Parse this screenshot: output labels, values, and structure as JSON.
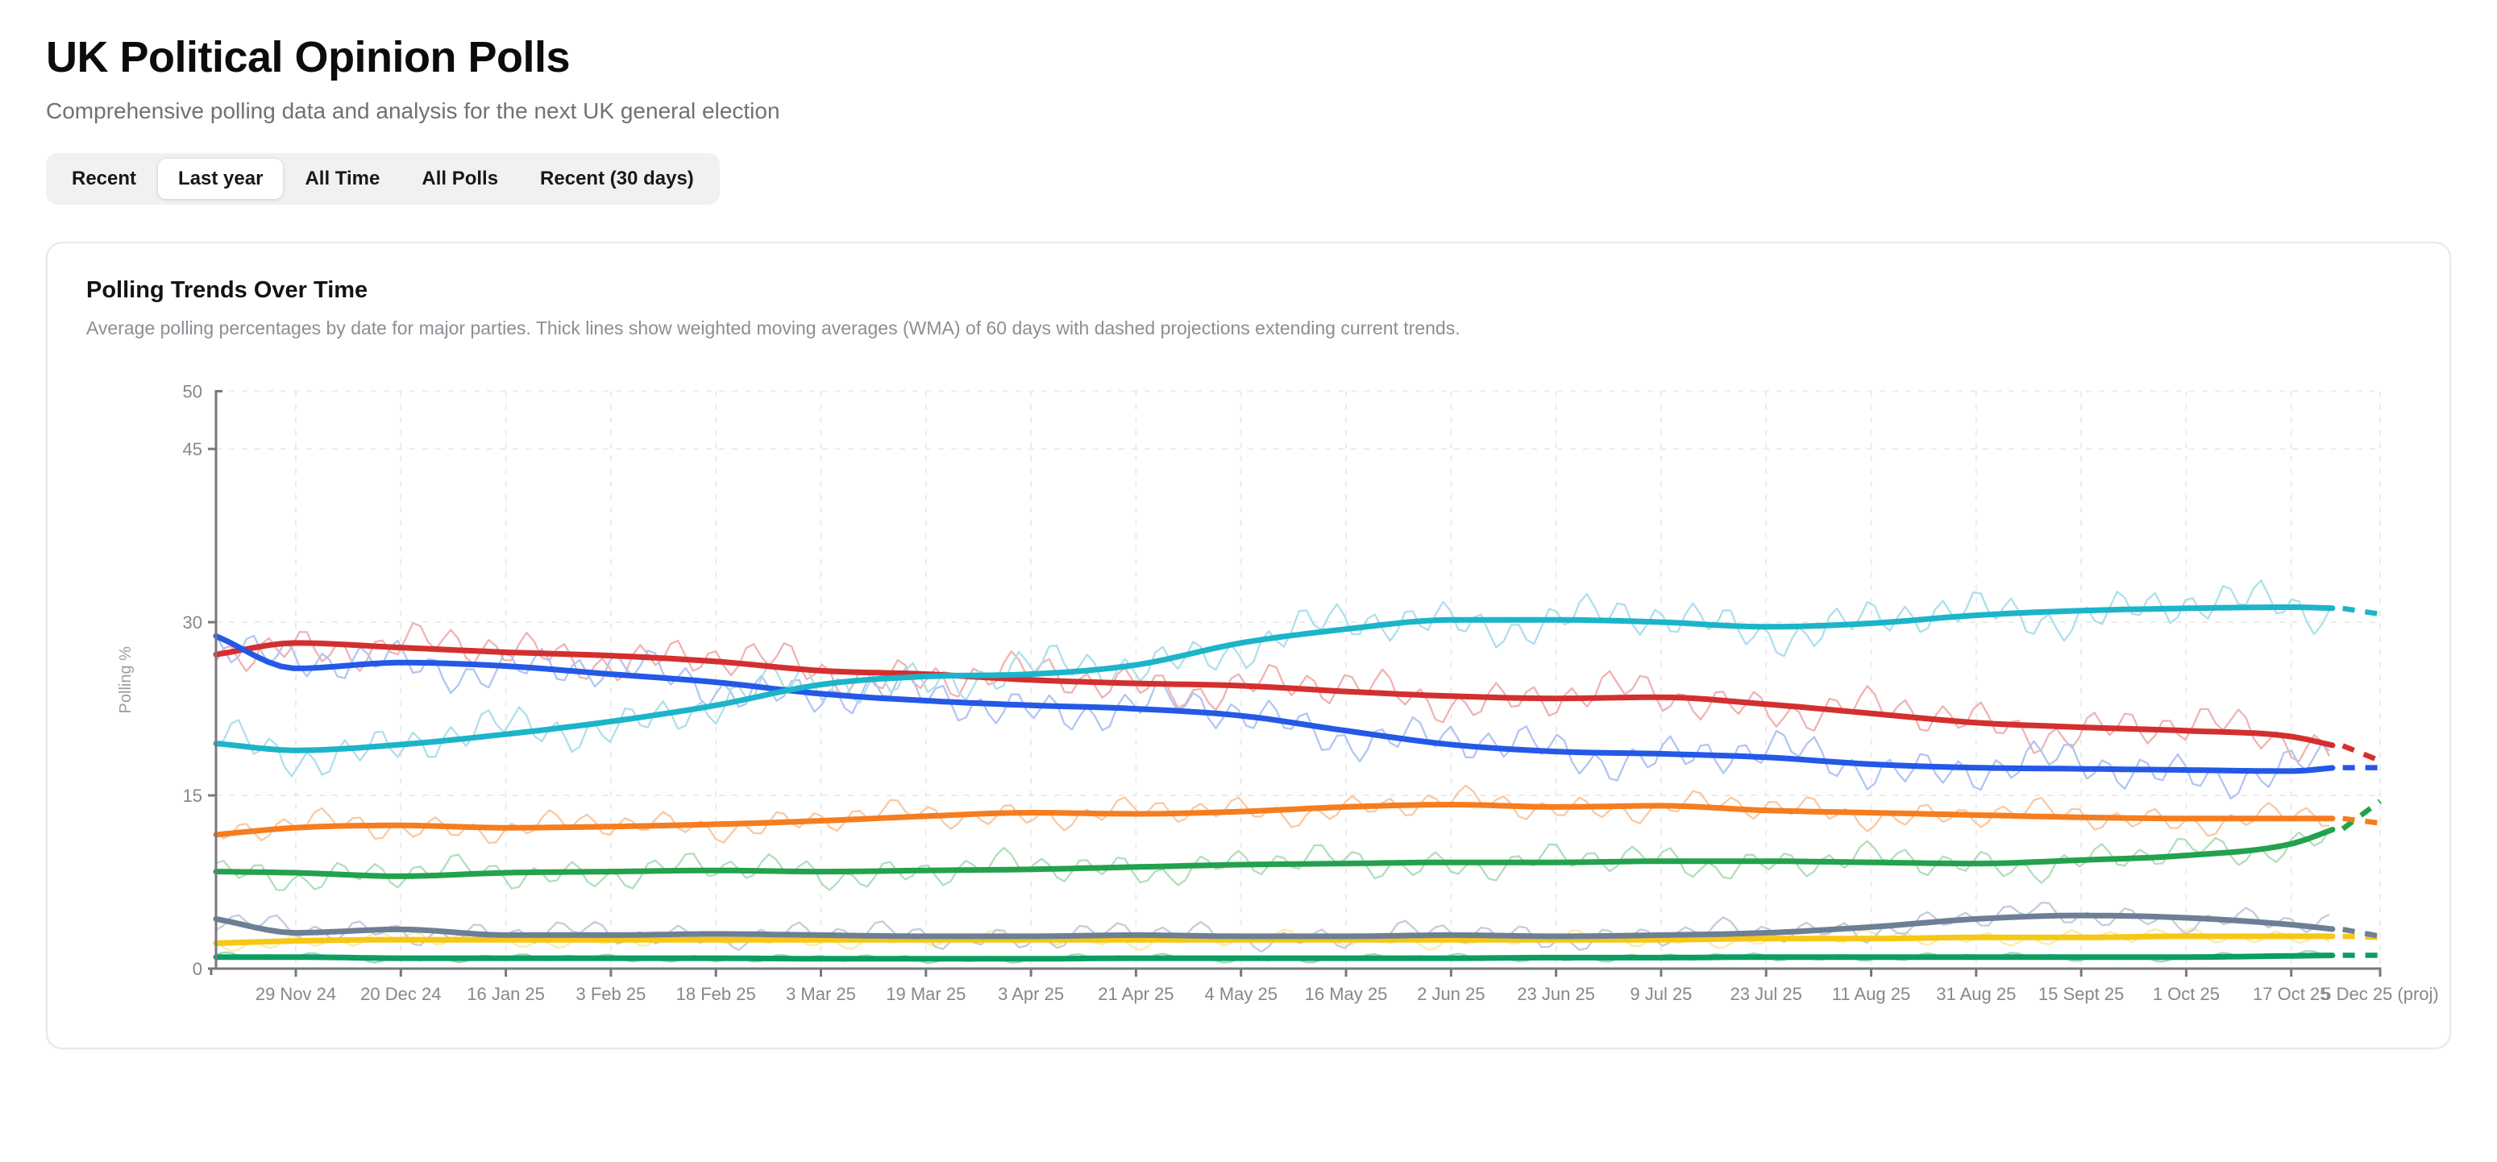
{
  "page": {
    "title": "UK Political Opinion Polls",
    "subtitle": "Comprehensive polling data and analysis for the next UK general election"
  },
  "tabs": {
    "items": [
      {
        "label": "Recent",
        "active": false
      },
      {
        "label": "Last year",
        "active": true
      },
      {
        "label": "All Time",
        "active": false
      },
      {
        "label": "All Polls",
        "active": false
      },
      {
        "label": "Recent (30 days)",
        "active": false
      }
    ]
  },
  "card": {
    "title": "Polling Trends Over Time",
    "description": "Average polling percentages by date for major parties. Thick lines show weighted moving averages (WMA) of 60 days with dashed projections extending current trends."
  },
  "chart_data": {
    "type": "line",
    "title": "Polling Trends Over Time",
    "xlabel": "",
    "ylabel": "Polling %",
    "ylim": [
      0,
      50
    ],
    "yticks": [
      0,
      15,
      30,
      45,
      50
    ],
    "grid": "dashed, horizontal at yticks and vertical at each date tick",
    "legend": "none",
    "axis_color": "#77787b",
    "grid_color": "#ebebec",
    "tick_label_color": "#85888c",
    "x_categories": [
      "29 Nov 24",
      "20 Dec 24",
      "16 Jan 25",
      "3 Feb 25",
      "18 Feb 25",
      "3 Mar 25",
      "19 Mar 25",
      "3 Apr 25",
      "21 Apr 25",
      "4 May 25",
      "16 May 25",
      "2 Jun 25",
      "23 Jun 25",
      "9 Jul 25",
      "23 Jul 25",
      "11 Aug 25",
      "31 Aug 25",
      "15 Sept 25",
      "1 Oct 25",
      "17 Oct 25",
      "5 Dec 25 (proj)"
    ],
    "projection_x_index": 20,
    "note": "values[] are WMA readings at the first 20 x_categories; pre_start is the value at the left plot edge; solid_end is where thick/raw lines stop (just before the projection zone); projection is the dashed-line value at 5 Dec 25",
    "series": [
      {
        "id": "seagreen-series",
        "color": "#0a9e60",
        "light_color": "#9ad2bb",
        "noise_amp": 0.4,
        "pre_start": 1.0,
        "values": [
          1.0,
          0.9,
          0.9,
          0.9,
          0.9,
          0.85,
          0.85,
          0.85,
          0.9,
          0.9,
          0.9,
          0.9,
          0.95,
          0.95,
          1.0,
          1.0,
          1.0,
          1.0,
          1.0,
          1.1
        ],
        "solid_end": 1.15,
        "projection": 1.15
      },
      {
        "id": "yellow-series",
        "color": "#f6c714",
        "light_color": "#fae9a0",
        "noise_amp": 0.8,
        "pre_start": 2.2,
        "values": [
          2.4,
          2.5,
          2.5,
          2.5,
          2.5,
          2.5,
          2.5,
          2.5,
          2.5,
          2.5,
          2.5,
          2.5,
          2.5,
          2.5,
          2.6,
          2.6,
          2.7,
          2.7,
          2.8,
          2.8
        ],
        "solid_end": 2.8,
        "projection": 2.7
      },
      {
        "id": "gray-series",
        "color": "#6d7f95",
        "light_color": "#bcc7d8",
        "noise_amp": 1.3,
        "pre_start": 4.3,
        "values": [
          3.1,
          3.4,
          2.9,
          2.9,
          3.0,
          2.9,
          2.8,
          2.8,
          2.9,
          2.8,
          2.8,
          2.9,
          2.8,
          2.9,
          3.1,
          3.6,
          4.3,
          4.6,
          4.4,
          3.8
        ],
        "solid_end": 3.4,
        "projection": 2.8
      },
      {
        "id": "green-series",
        "color": "#23a14d",
        "light_color": "#a8dcb2",
        "noise_amp": 1.7,
        "pre_start": 8.4,
        "values": [
          8.3,
          8.0,
          8.3,
          8.4,
          8.5,
          8.4,
          8.5,
          8.6,
          8.8,
          9.0,
          9.1,
          9.2,
          9.2,
          9.3,
          9.3,
          9.2,
          9.1,
          9.4,
          9.8,
          10.8
        ],
        "solid_end": 12.1,
        "projection": 14.5
      },
      {
        "id": "orange-series",
        "color": "#f57d1f",
        "light_color": "#f8c49a",
        "noise_amp": 1.5,
        "pre_start": 11.6,
        "values": [
          12.2,
          12.4,
          12.2,
          12.3,
          12.5,
          12.8,
          13.2,
          13.5,
          13.4,
          13.6,
          14.0,
          14.2,
          14.0,
          14.1,
          13.7,
          13.5,
          13.3,
          13.1,
          13.0,
          13.0
        ],
        "solid_end": 13.0,
        "projection": 12.6
      },
      {
        "id": "red-series",
        "color": "#d42f2f",
        "light_color": "#f0aaaa",
        "noise_amp": 2.3,
        "pre_start": 27.2,
        "values": [
          28.2,
          27.8,
          27.4,
          27.1,
          26.6,
          25.8,
          25.5,
          25.0,
          24.7,
          24.5,
          24.0,
          23.6,
          23.4,
          23.5,
          22.9,
          22.1,
          21.3,
          20.9,
          20.6,
          20.1
        ],
        "solid_end": 19.3,
        "projection": 18.0
      },
      {
        "id": "blue-series",
        "color": "#2458e6",
        "light_color": "#a9bff2",
        "noise_amp": 2.4,
        "pre_start": 28.8,
        "values": [
          26.0,
          26.5,
          26.2,
          25.5,
          24.8,
          23.8,
          23.2,
          22.8,
          22.5,
          21.9,
          20.6,
          19.4,
          18.8,
          18.6,
          18.3,
          17.7,
          17.4,
          17.3,
          17.2,
          17.1
        ],
        "solid_end": 17.4,
        "projection": 17.4
      },
      {
        "id": "cyan-series",
        "color": "#1cb4c9",
        "light_color": "#a5dcea",
        "noise_amp": 2.4,
        "pre_start": 19.5,
        "values": [
          18.9,
          19.4,
          20.3,
          21.4,
          22.8,
          24.6,
          25.3,
          25.5,
          26.3,
          28.2,
          29.4,
          30.2,
          30.2,
          30.0,
          29.6,
          29.9,
          30.6,
          31.0,
          31.2,
          31.3
        ],
        "solid_end": 31.2,
        "projection": 30.7
      }
    ]
  }
}
